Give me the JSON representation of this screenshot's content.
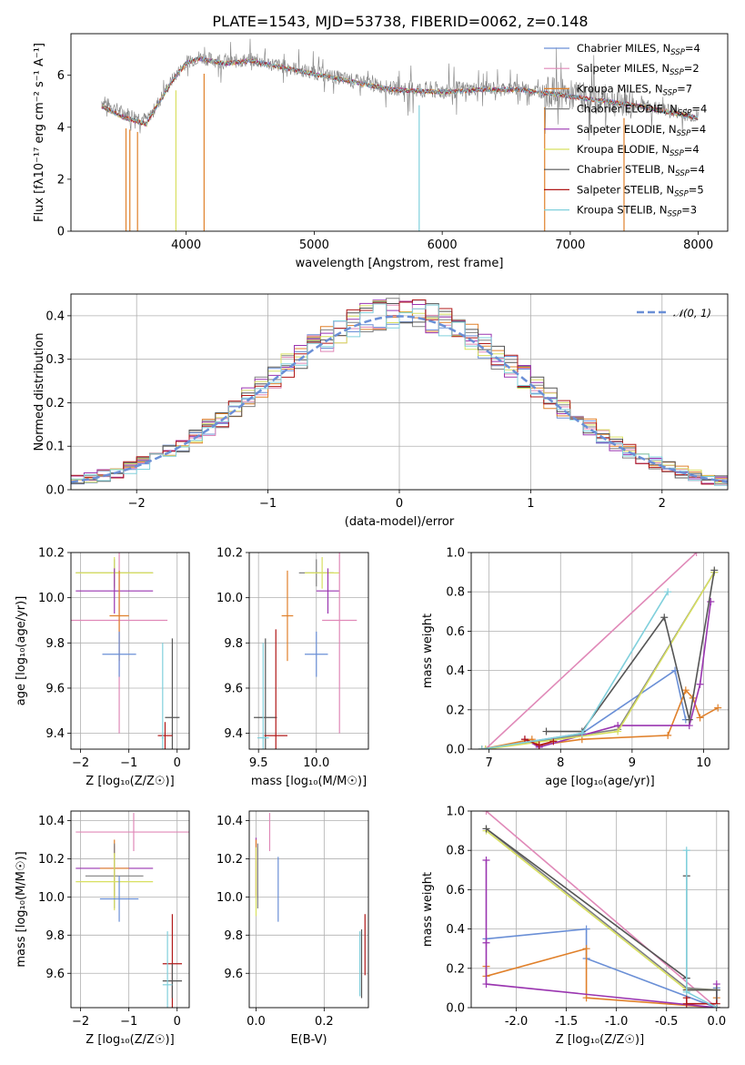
{
  "figure": {
    "title": "PLATE=1543, MJD=53738, FIBERID=0062, z=0.148"
  },
  "colors": {
    "chabrier_miles": "#6a8fd6",
    "salpeter_miles": "#e089b8",
    "kroupa_miles": "#e0802a",
    "chabrier_elodie": "#808080",
    "salpeter_elodie": "#9a35b0",
    "kroupa_elodie": "#d8e060",
    "chabrier_stelib": "#555555",
    "salpeter_stelib": "#b01818",
    "kroupa_stelib": "#80d0dc",
    "normal_curve": "#6a8fd6"
  },
  "chart_data": [
    {
      "id": "spectrum",
      "type": "line",
      "xlabel": "wavelength [Angstrom, rest frame]",
      "ylabel": "Flux [fλ10⁻¹⁷ erg cm⁻² s⁻¹ A⁻¹]",
      "xlim": [
        3100,
        8230
      ],
      "ylim": [
        0,
        7.6
      ],
      "xticks": [
        4000,
        5000,
        6000,
        7000,
        8000
      ],
      "yticks": [
        0,
        2,
        4,
        6
      ],
      "legend_position": "top-right",
      "series": [
        {
          "name": "Chabrier MILES, N_SSP=4",
          "label_main": "Chabrier MILES, N",
          "label_sub": "SSP",
          "label_tail": "=4",
          "color_key": "chabrier_miles"
        },
        {
          "name": "Salpeter MILES, N_SSP=2",
          "label_main": "Salpeter MILES, N",
          "label_sub": "SSP",
          "label_tail": "=2",
          "color_key": "salpeter_miles"
        },
        {
          "name": "Kroupa MILES, N_SSP=7",
          "label_main": "Kroupa MILES, N",
          "label_sub": "SSP",
          "label_tail": "=7",
          "color_key": "kroupa_miles"
        },
        {
          "name": "Chabrier ELODIE, N_SSP=4",
          "label_main": "Chabrier ELODIE, N",
          "label_sub": "SSP",
          "label_tail": "=4",
          "color_key": "chabrier_elodie"
        },
        {
          "name": "Salpeter ELODIE, N_SSP=4",
          "label_main": "Salpeter ELODIE, N",
          "label_sub": "SSP",
          "label_tail": "=4",
          "color_key": "salpeter_elodie"
        },
        {
          "name": "Kroupa ELODIE, N_SSP=4",
          "label_main": "Kroupa ELODIE, N",
          "label_sub": "SSP",
          "label_tail": "=4",
          "color_key": "kroupa_elodie"
        },
        {
          "name": "Chabrier STELIB, N_SSP=4",
          "label_main": "Chabrier STELIB, N",
          "label_sub": "SSP",
          "label_tail": "=4",
          "color_key": "chabrier_stelib"
        },
        {
          "name": "Salpeter STELIB, N_SSP=5",
          "label_main": "Salpeter STELIB, N",
          "label_sub": "SSP",
          "label_tail": "=5",
          "color_key": "salpeter_stelib"
        },
        {
          "name": "Kroupa STELIB, N_SSP=3",
          "label_main": "Kroupa STELIB, N",
          "label_sub": "SSP",
          "label_tail": "=3",
          "color_key": "kroupa_stelib"
        }
      ],
      "data_envelope": {
        "x": [
          3340,
          3500,
          3700,
          3900,
          4000,
          4100,
          4300,
          4500,
          4700,
          5000,
          5300,
          5600,
          6000,
          6300,
          6600,
          6900,
          7200,
          7500,
          7800,
          8000
        ],
        "y": [
          5.0,
          4.6,
          4.3,
          5.9,
          6.5,
          6.7,
          6.5,
          6.6,
          6.4,
          6.1,
          5.8,
          5.5,
          5.4,
          5.5,
          5.5,
          5.3,
          5.1,
          4.9,
          4.6,
          4.4
        ]
      },
      "absorption_dips": [
        3530,
        3560,
        3620,
        3920,
        4140,
        5820,
        6800,
        7420
      ]
    },
    {
      "id": "residuals",
      "type": "histogram",
      "xlabel": "(data-model)/error",
      "ylabel": "Normed distribution",
      "xlim": [
        -2.5,
        2.5
      ],
      "ylim": [
        0,
        0.45
      ],
      "xticks": [
        -2,
        -1,
        0,
        1,
        2
      ],
      "yticks": [
        0.0,
        0.1,
        0.2,
        0.3,
        0.4
      ],
      "grid": true,
      "legend_position": "top-right",
      "curve_label": "𝒩(0, 1)",
      "bin_width": 0.1,
      "bin_start": -2.5
    },
    {
      "id": "age_vs_Z",
      "type": "errorbar",
      "xlabel": "Z [log₁₀(Z/Z☉)]",
      "ylabel": "age [log₁₀(age/yr)]",
      "xlim": [
        -2.2,
        0.25
      ],
      "ylim": [
        9.33,
        10.2
      ],
      "xticks": [
        -2,
        -1,
        0
      ],
      "yticks": [
        9.4,
        9.6,
        9.8,
        10.0,
        10.2
      ],
      "grid": true,
      "points": [
        {
          "color_key": "chabrier_elodie",
          "x": -1.3,
          "xerr": 0.8,
          "y": 10.11,
          "yerr": 0.06
        },
        {
          "color_key": "kroupa_elodie",
          "x": -1.3,
          "xerr": 0.8,
          "y": 10.11,
          "yerr": 0.07
        },
        {
          "color_key": "salpeter_elodie",
          "x": -1.3,
          "xerr": 0.8,
          "y": 10.03,
          "yerr": 0.1
        },
        {
          "color_key": "salpeter_miles",
          "x": -1.2,
          "xerr": 1.0,
          "y": 9.9,
          "yerr": 0.5
        },
        {
          "color_key": "kroupa_miles",
          "x": -1.2,
          "xerr": 0.2,
          "y": 9.92,
          "yerr": 0.2
        },
        {
          "color_key": "chabrier_miles",
          "x": -1.2,
          "xerr": 0.35,
          "y": 9.75,
          "yerr": 0.1
        },
        {
          "color_key": "chabrier_stelib",
          "x": -0.1,
          "xerr": 0.15,
          "y": 9.47,
          "yerr": 0.35
        },
        {
          "color_key": "salpeter_stelib",
          "x": -0.25,
          "xerr": 0.15,
          "y": 9.39,
          "yerr": 0.06
        },
        {
          "color_key": "kroupa_stelib",
          "x": -0.3,
          "xerr": 0.02,
          "y": 9.38,
          "yerr": 0.42
        }
      ]
    },
    {
      "id": "age_vs_mass",
      "type": "errorbar",
      "xlabel": "mass [log₁₀(M/M☉)]",
      "ylabel": "",
      "xlim": [
        9.42,
        10.45
      ],
      "ylim": [
        9.33,
        10.2
      ],
      "xticks": [
        9.5,
        10.0
      ],
      "yticks": [
        9.4,
        9.6,
        9.8,
        10.0,
        10.2
      ],
      "grid": true,
      "points": [
        {
          "color_key": "chabrier_elodie",
          "x": 10.0,
          "xerr": 0.15,
          "y": 10.11,
          "yerr": 0.06
        },
        {
          "color_key": "kroupa_elodie",
          "x": 10.05,
          "xerr": 0.15,
          "y": 10.11,
          "yerr": 0.07
        },
        {
          "color_key": "salpeter_elodie",
          "x": 10.1,
          "xerr": 0.1,
          "y": 10.03,
          "yerr": 0.1
        },
        {
          "color_key": "salpeter_miles",
          "x": 10.2,
          "xerr": 0.15,
          "y": 9.9,
          "yerr": 0.5
        },
        {
          "color_key": "kroupa_miles",
          "x": 9.75,
          "xerr": 0.05,
          "y": 9.92,
          "yerr": 0.2
        },
        {
          "color_key": "chabrier_miles",
          "x": 10.0,
          "xerr": 0.1,
          "y": 9.75,
          "yerr": 0.1
        },
        {
          "color_key": "chabrier_stelib",
          "x": 9.56,
          "xerr": 0.1,
          "y": 9.47,
          "yerr": 0.35
        },
        {
          "color_key": "salpeter_stelib",
          "x": 9.65,
          "xerr": 0.1,
          "y": 9.39,
          "yerr": 0.47
        },
        {
          "color_key": "kroupa_stelib",
          "x": 9.54,
          "xerr": 0.05,
          "y": 9.38,
          "yerr": 0.42
        }
      ]
    },
    {
      "id": "weight_vs_age",
      "type": "line",
      "xlabel": "age [log₁₀(age/yr)]",
      "ylabel": "mass weight",
      "xlim": [
        6.75,
        10.35
      ],
      "ylim": [
        0,
        1.0
      ],
      "xticks": [
        7,
        8,
        9,
        10
      ],
      "yticks": [
        0.0,
        0.2,
        0.4,
        0.6,
        0.8,
        1.0
      ],
      "grid": true,
      "series": [
        {
          "color_key": "chabrier_miles",
          "x": [
            6.9,
            8.3,
            9.6,
            9.75
          ],
          "y": [
            0.0,
            0.08,
            0.4,
            0.15
          ]
        },
        {
          "color_key": "salpeter_miles",
          "x": [
            6.95,
            9.9
          ],
          "y": [
            0.0,
            1.0
          ]
        },
        {
          "color_key": "kroupa_miles",
          "x": [
            6.9,
            7.6,
            7.7,
            8.3,
            9.5,
            9.75,
            9.85,
            9.95,
            10.2
          ],
          "y": [
            0.0,
            0.05,
            0.02,
            0.05,
            0.07,
            0.3,
            0.26,
            0.16,
            0.21
          ]
        },
        {
          "color_key": "chabrier_elodie",
          "x": [
            6.95,
            8.8,
            10.15
          ],
          "y": [
            0.0,
            0.1,
            0.9
          ]
        },
        {
          "color_key": "salpeter_elodie",
          "x": [
            7.5,
            7.7,
            8.8,
            9.8,
            9.95,
            10.1
          ],
          "y": [
            0.05,
            0.01,
            0.12,
            0.12,
            0.33,
            0.75
          ]
        },
        {
          "color_key": "kroupa_elodie",
          "x": [
            6.95,
            8.8,
            10.15
          ],
          "y": [
            0.0,
            0.09,
            0.9
          ]
        },
        {
          "color_key": "chabrier_stelib",
          "x": [
            7.8,
            8.3,
            9.45,
            9.8,
            10.15
          ],
          "y": [
            0.09,
            0.09,
            0.67,
            0.15,
            0.91
          ]
        },
        {
          "color_key": "salpeter_stelib",
          "x": [
            7.5,
            7.7,
            7.9
          ],
          "y": [
            0.05,
            0.02,
            0.04
          ]
        },
        {
          "color_key": "kroupa_stelib",
          "x": [
            6.9,
            8.3,
            9.5
          ],
          "y": [
            0.0,
            0.08,
            0.8
          ]
        }
      ]
    },
    {
      "id": "mass_vs_Z",
      "type": "errorbar",
      "xlabel": "Z [log₁₀(Z/Z☉)]",
      "ylabel": "mass [log₁₀(M/M☉)]",
      "xlim": [
        -2.2,
        0.25
      ],
      "ylim": [
        9.42,
        10.45
      ],
      "xticks": [
        -2,
        -1,
        0
      ],
      "yticks": [
        9.6,
        9.8,
        10.0,
        10.2,
        10.4
      ],
      "grid": true,
      "points": [
        {
          "color_key": "salpeter_miles",
          "x": -0.9,
          "xerr": 1.2,
          "y": 10.34,
          "yerr": 0.1
        },
        {
          "color_key": "salpeter_elodie",
          "x": -1.3,
          "xerr": 0.8,
          "y": 10.15,
          "yerr": 0.12
        },
        {
          "color_key": "kroupa_miles",
          "x": -1.3,
          "xerr": 0.3,
          "y": 10.15,
          "yerr": 0.15
        },
        {
          "color_key": "chabrier_elodie",
          "x": -1.3,
          "xerr": 0.6,
          "y": 10.11,
          "yerr": 0.17
        },
        {
          "color_key": "kroupa_elodie",
          "x": -1.3,
          "xerr": 0.8,
          "y": 10.08,
          "yerr": 0.15
        },
        {
          "color_key": "chabrier_miles",
          "x": -1.2,
          "xerr": 0.4,
          "y": 9.99,
          "yerr": 0.12
        },
        {
          "color_key": "salpeter_stelib",
          "x": -0.1,
          "xerr": 0.2,
          "y": 9.65,
          "yerr": 0.26
        },
        {
          "color_key": "chabrier_stelib",
          "x": -0.1,
          "xerr": 0.2,
          "y": 9.56,
          "yerr": 0.09
        },
        {
          "color_key": "kroupa_stelib",
          "x": -0.2,
          "xerr": 0.1,
          "y": 9.54,
          "yerr": 0.28
        }
      ]
    },
    {
      "id": "mass_vs_EBV",
      "type": "errorbar",
      "xlabel": "E(B-V)",
      "ylabel": "",
      "xlim": [
        -0.02,
        0.33
      ],
      "ylim": [
        9.42,
        10.45
      ],
      "xticks": [
        0.0,
        0.2
      ],
      "yticks": [
        9.6,
        9.8,
        10.0,
        10.2,
        10.4
      ],
      "grid": true,
      "points": [
        {
          "color_key": "salpeter_miles",
          "x": 0.04,
          "xerr": 0,
          "y": 10.34,
          "yerr": 0.1
        },
        {
          "color_key": "salpeter_elodie",
          "x": 0.0,
          "xerr": 0,
          "y": 10.15,
          "yerr": 0.16
        },
        {
          "color_key": "kroupa_miles",
          "x": 0.0,
          "xerr": 0,
          "y": 10.15,
          "yerr": 0.15
        },
        {
          "color_key": "chabrier_elodie",
          "x": 0.005,
          "xerr": 0,
          "y": 10.11,
          "yerr": 0.17
        },
        {
          "color_key": "kroupa_elodie",
          "x": 0.0,
          "xerr": 0,
          "y": 10.08,
          "yerr": 0.18
        },
        {
          "color_key": "chabrier_miles",
          "x": 0.065,
          "xerr": 0,
          "y": 10.04,
          "yerr": 0.17
        },
        {
          "color_key": "salpeter_stelib",
          "x": 0.32,
          "xerr": 0,
          "y": 9.75,
          "yerr": 0.16
        },
        {
          "color_key": "chabrier_stelib",
          "x": 0.31,
          "xerr": 0,
          "y": 9.65,
          "yerr": 0.18
        },
        {
          "color_key": "kroupa_stelib",
          "x": 0.305,
          "xerr": 0,
          "y": 9.65,
          "yerr": 0.17
        }
      ]
    },
    {
      "id": "weight_vs_Z",
      "type": "line",
      "xlabel": "Z [log₁₀(Z/Z☉)]",
      "ylabel": "mass weight",
      "xlim": [
        -2.45,
        0.12
      ],
      "ylim": [
        0,
        1.0
      ],
      "xticks": [
        -2.0,
        -1.5,
        -1.0,
        -0.5,
        0.0
      ],
      "yticks": [
        0.0,
        0.2,
        0.4,
        0.6,
        0.8,
        1.0
      ],
      "grid": true,
      "series": [
        {
          "color_key": "chabrier_miles",
          "x": [
            -2.3,
            -1.3,
            -1.3,
            0.0,
            0.0
          ],
          "y": [
            0.35,
            0.4,
            0.25,
            0.0,
            0.1
          ]
        },
        {
          "color_key": "salpeter_miles",
          "x": [
            -2.3,
            0.0
          ],
          "y": [
            1.0,
            0.0
          ]
        },
        {
          "color_key": "kroupa_miles",
          "x": [
            -2.3,
            -2.3,
            -1.3,
            -1.3,
            0.0,
            0.0
          ],
          "y": [
            0.21,
            0.16,
            0.3,
            0.05,
            0.0,
            0.05
          ]
        },
        {
          "color_key": "chabrier_elodie",
          "x": [
            -2.3,
            -0.3,
            0.0
          ],
          "y": [
            0.91,
            0.1,
            0.09
          ]
        },
        {
          "color_key": "salpeter_elodie",
          "x": [
            -2.3,
            -2.3,
            -2.3,
            0.0,
            0.0
          ],
          "y": [
            0.75,
            0.33,
            0.12,
            0.0,
            0.12
          ]
        },
        {
          "color_key": "kroupa_elodie",
          "x": [
            -2.3,
            -0.3,
            0.0
          ],
          "y": [
            0.9,
            0.09,
            0.09
          ]
        },
        {
          "color_key": "chabrier_stelib",
          "x": [
            -2.3,
            -0.3,
            -0.3,
            -0.3,
            0.0,
            0.0
          ],
          "y": [
            0.91,
            0.15,
            0.67,
            0.09,
            0.09,
            0.0
          ]
        },
        {
          "color_key": "salpeter_stelib",
          "x": [
            -0.3,
            -0.3,
            0.0
          ],
          "y": [
            0.05,
            0.02,
            0.02
          ]
        },
        {
          "color_key": "kroupa_stelib",
          "x": [
            -0.3,
            -0.3,
            0.0
          ],
          "y": [
            0.8,
            0.08,
            0.0
          ]
        }
      ]
    }
  ]
}
